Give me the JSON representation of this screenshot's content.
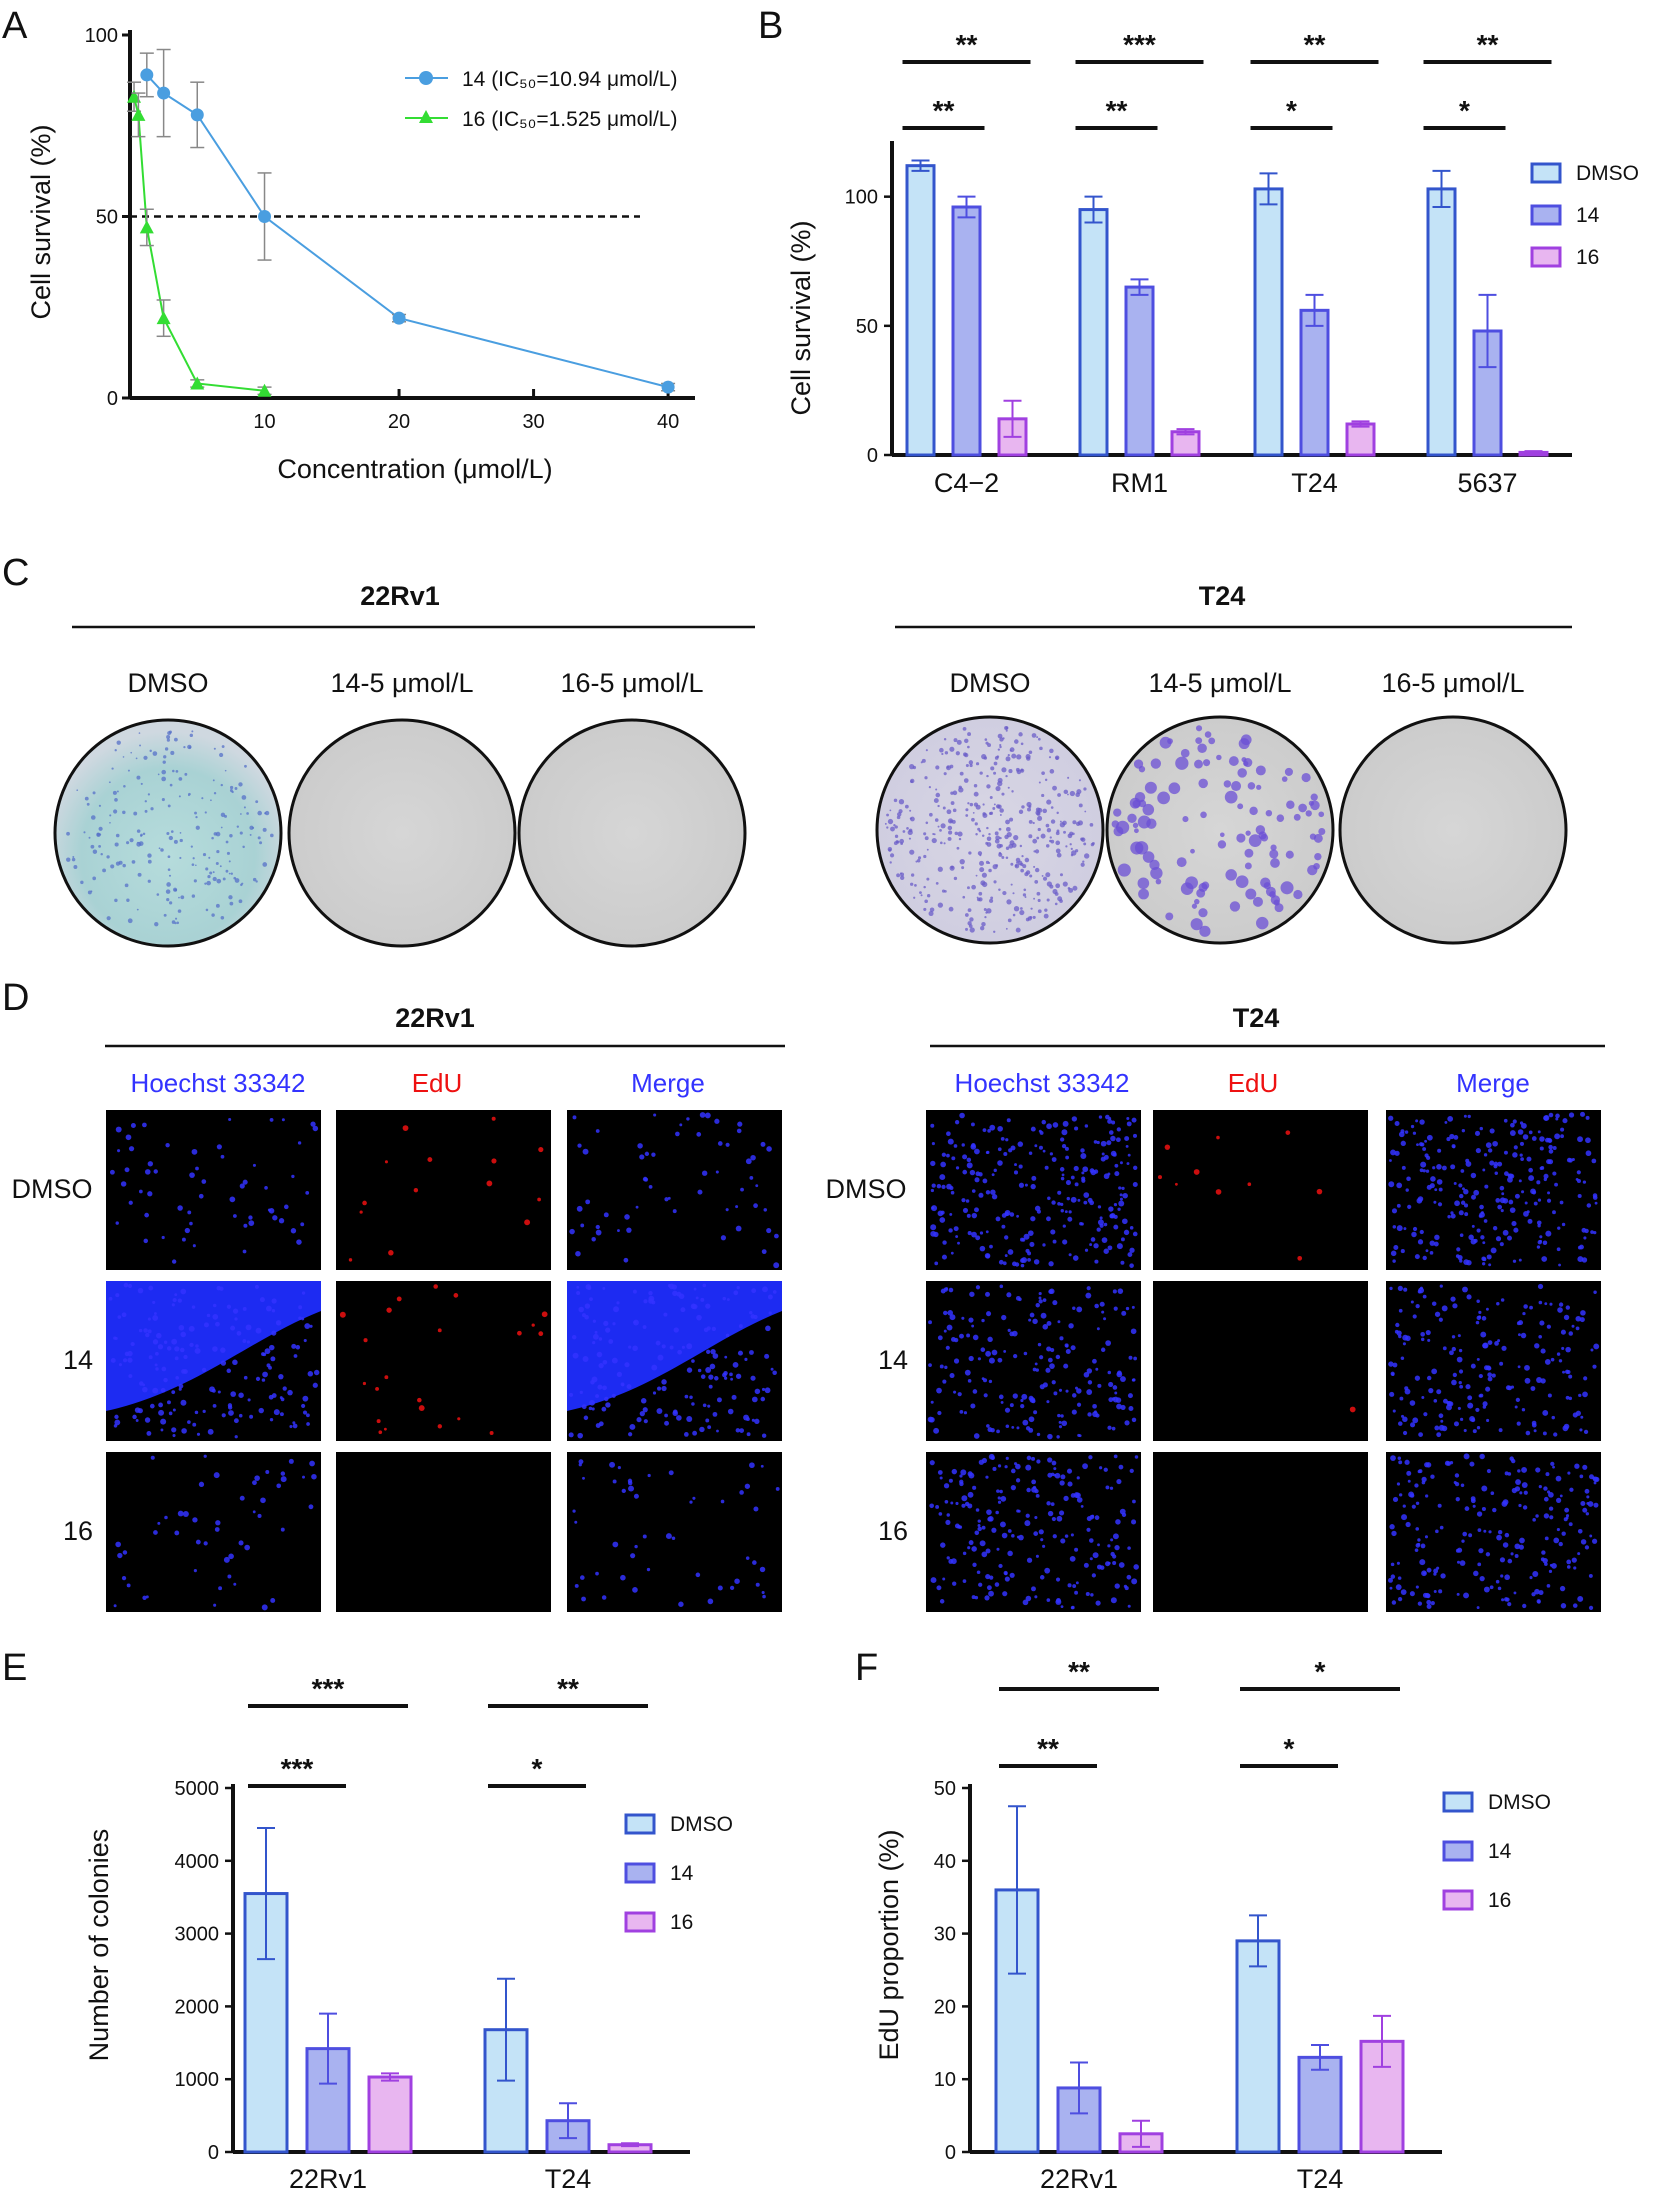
{
  "panel_labels": [
    "A",
    "B",
    "C",
    "D",
    "E",
    "F"
  ],
  "colors": {
    "c14_line": "#4a9ee0",
    "c16_line": "#33dd33",
    "dmso_fill": "#c4e3f7",
    "dmso_stroke": "#3355cc",
    "p14_fill": "#a9b2f0",
    "p14_stroke": "#4e4ee0",
    "p16_fill": "#e8b6f0",
    "p16_stroke": "#a040e0",
    "hoechst": "#3333ff",
    "edu": "#ee1111",
    "merge": "#3333ff"
  },
  "chart_data": [
    {
      "id": "A",
      "type": "line",
      "xlabel": "Concentration (μmol/L)",
      "ylabel": "Cell survival (%)",
      "xlim": [
        0,
        42
      ],
      "ylim": [
        0,
        100
      ],
      "xticks": [
        "10",
        "20",
        "30",
        "40"
      ],
      "yticks": [
        "0",
        "50",
        "100"
      ],
      "reference_line": 50,
      "series": [
        {
          "name": "14 (IC₅₀=10.94 μmol/L)",
          "x": [
            1.25,
            2.5,
            5,
            10,
            20,
            40
          ],
          "y": [
            89,
            84,
            78,
            50,
            22,
            3
          ],
          "err": [
            6,
            12,
            9,
            12,
            1,
            1
          ]
        },
        {
          "name": "16 (IC₅₀=1.525 μmol/L)",
          "x": [
            0.3,
            0.625,
            1.25,
            2.5,
            5,
            10
          ],
          "y": [
            83,
            78,
            47,
            22,
            4,
            2
          ],
          "err": [
            4,
            6,
            5,
            5,
            1,
            1
          ]
        }
      ]
    },
    {
      "id": "B",
      "type": "bar",
      "ylabel": "Cell survival (%)",
      "ylim": [
        0,
        120
      ],
      "yticks": [
        "0",
        "50",
        "100"
      ],
      "categories": [
        "C4−2",
        "RM1",
        "T24",
        "5637"
      ],
      "series": [
        {
          "name": "DMSO",
          "values": [
            112,
            95,
            103,
            103
          ],
          "err": [
            2,
            5,
            6,
            7
          ]
        },
        {
          "name": "14",
          "values": [
            96,
            65,
            56,
            48
          ],
          "err": [
            4,
            3,
            6,
            14
          ]
        },
        {
          "name": "16",
          "values": [
            14,
            9,
            12,
            1
          ],
          "err": [
            7,
            1,
            1,
            0.5
          ]
        }
      ],
      "significance": [
        {
          "cat": 0,
          "short": "**",
          "long": "**"
        },
        {
          "cat": 1,
          "short": "**",
          "long": "***"
        },
        {
          "cat": 2,
          "short": "*",
          "long": "**"
        },
        {
          "cat": 3,
          "short": "*",
          "long": "**"
        }
      ]
    },
    {
      "id": "E",
      "type": "bar",
      "ylabel": "Number of colonies",
      "ylim": [
        0,
        5000
      ],
      "yticks": [
        "0",
        "1000",
        "2000",
        "3000",
        "4000",
        "5000"
      ],
      "categories": [
        "22Rv1",
        "T24"
      ],
      "series": [
        {
          "name": "DMSO",
          "values": [
            3550,
            1680
          ],
          "err": [
            900,
            700
          ]
        },
        {
          "name": "14",
          "values": [
            1420,
            430
          ],
          "err": [
            480,
            240
          ]
        },
        {
          "name": "16",
          "values": [
            1030,
            100
          ],
          "err": [
            50,
            20
          ]
        }
      ],
      "significance": [
        {
          "cat": 0,
          "short": "***",
          "long": "***"
        },
        {
          "cat": 1,
          "short": "*",
          "long": "**"
        }
      ]
    },
    {
      "id": "F",
      "type": "bar",
      "ylabel": "EdU proportion (%)",
      "ylim": [
        0,
        50
      ],
      "yticks": [
        "0",
        "10",
        "20",
        "30",
        "40",
        "50"
      ],
      "categories": [
        "22Rv1",
        "T24"
      ],
      "series": [
        {
          "name": "DMSO",
          "values": [
            36,
            29
          ],
          "err": [
            11.5,
            3.5
          ]
        },
        {
          "name": "14",
          "values": [
            8.8,
            13
          ],
          "err": [
            3.5,
            1.7
          ]
        },
        {
          "name": "16",
          "values": [
            2.5,
            15.2
          ],
          "err": [
            1.8,
            3.5
          ]
        }
      ],
      "significance": [
        {
          "cat": 0,
          "short": "**",
          "long": "**"
        },
        {
          "cat": 1,
          "short": "*",
          "long": "*"
        }
      ]
    }
  ],
  "panel_C": {
    "groups": [
      {
        "title": "22Rv1",
        "wells": [
          "DMSO",
          "14-5 μmol/L",
          "16-5 μmol/L"
        ]
      },
      {
        "title": "T24",
        "wells": [
          "DMSO",
          "14-5 μmol/L",
          "16-5 μmol/L"
        ]
      }
    ]
  },
  "panel_D": {
    "groups": [
      {
        "title": "22Rv1",
        "columns": [
          "Hoechst 33342",
          "EdU",
          "Merge"
        ]
      },
      {
        "title": "T24",
        "columns": [
          "Hoechst 33342",
          "EdU",
          "Merge"
        ]
      }
    ],
    "rows": [
      "DMSO",
      "14",
      "16"
    ]
  }
}
